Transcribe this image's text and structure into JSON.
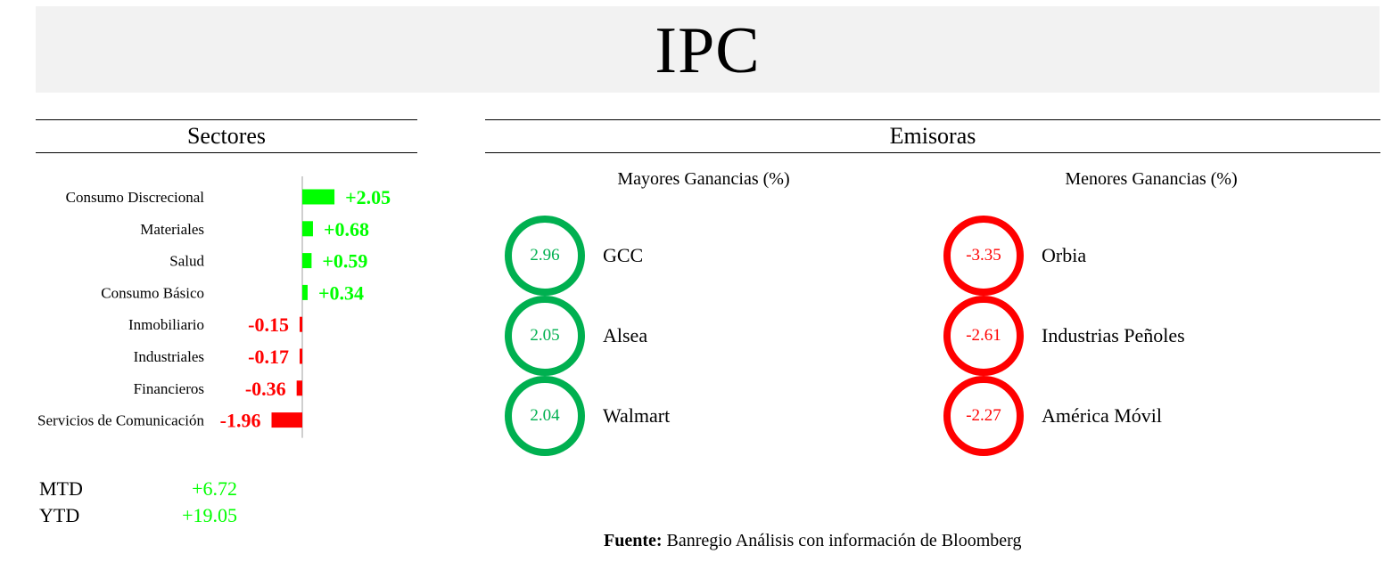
{
  "title": "IPC",
  "sectores": {
    "heading": "Sectores",
    "summary": [
      {
        "label": "MTD",
        "value": "+6.72"
      },
      {
        "label": "YTD",
        "value": "+19.05"
      }
    ]
  },
  "emisoras": {
    "heading": "Emisoras",
    "mayores": {
      "title": "Mayores Ganancias (%)",
      "items": [
        {
          "value": "2.96",
          "name": "GCC"
        },
        {
          "value": "2.05",
          "name": "Alsea"
        },
        {
          "value": "2.04",
          "name": "Walmart"
        }
      ]
    },
    "menores": {
      "title": "Menores Ganancias (%)",
      "items": [
        {
          "value": "-3.35",
          "name": "Orbia"
        },
        {
          "value": "-2.61",
          "name": "Industrias Peñoles"
        },
        {
          "value": "-2.27",
          "name": "América Móvil"
        }
      ]
    }
  },
  "fuente": {
    "label": "Fuente:",
    "text": " Banregio Análisis con información de Bloomberg"
  },
  "colors": {
    "positive_bar": "#00ff00",
    "negative_bar": "#ff0000",
    "ring_positive": "#00b050",
    "ring_negative": "#ff0000"
  },
  "chart_data": {
    "type": "bar",
    "orientation": "horizontal",
    "categories": [
      "Consumo Discrecional",
      "Materiales",
      "Salud",
      "Consumo Básico",
      "Inmobiliario",
      "Industriales",
      "Financieros",
      "Servicios de Comunicación"
    ],
    "values": [
      2.05,
      0.68,
      0.59,
      0.34,
      -0.15,
      -0.17,
      -0.36,
      -1.96
    ],
    "labels": [
      "+2.05",
      "+0.68",
      "+0.59",
      "+0.34",
      "-0.15",
      "-0.17",
      "-0.36",
      "-1.96"
    ],
    "grid": false
  }
}
